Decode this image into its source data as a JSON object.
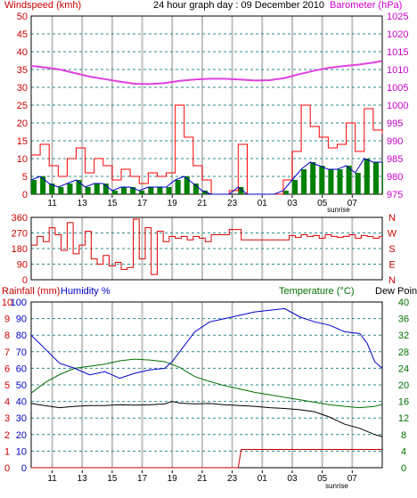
{
  "header": {
    "title": "24 hour graph day : 09 December 2010",
    "wind_label": "Windspeed (kmh)",
    "baro_label": "Barometer (hPa)"
  },
  "sunrise_label": "sunrise",
  "hour_ticks": [
    "11",
    "13",
    "15",
    "17",
    "19",
    "21",
    "23",
    "01",
    "03",
    "05",
    "07"
  ],
  "colors": {
    "background": "#ffffff",
    "grid_major": "#c0c0c0",
    "grid_dashed": "#2f8a8a",
    "wind_avg": "#0000cc",
    "wind_gust": "#ff0000",
    "wind_fill": "#008000",
    "barometer": "#e040e0",
    "direction": "#dd0000",
    "humidity": "#0000cc",
    "temperature": "#007000",
    "dewpoint": "#000000",
    "rainfall": "#cc0000",
    "left_axis_text": "#cc0000",
    "right_axis_text": "#cc00cc",
    "humidity_axis_text": "#0000cc",
    "temp_axis_text": "#007000"
  },
  "chart_data": [
    {
      "type": "line",
      "panel": "wind_barometer",
      "ylabel": "Windspeed (kmh)",
      "y2label": "Barometer (hPa)",
      "y_ticks": [
        "0",
        "5",
        "10",
        "15",
        "20",
        "25",
        "30",
        "35",
        "40",
        "45",
        "50"
      ],
      "y2_ticks": [
        "975",
        "980",
        "985",
        "990",
        "995",
        "1000",
        "1005",
        "1010",
        "1015",
        "1020",
        "1025"
      ],
      "ylim": [
        0,
        50
      ],
      "y2lim": [
        975,
        1025
      ],
      "x_hours_range": [
        9.6,
        33.0
      ],
      "series": [
        {
          "role": "barometer",
          "x": [
            9.6,
            10.5,
            11.5,
            12.5,
            13.5,
            14.5,
            15.5,
            16.5,
            17.5,
            18.5,
            19.5,
            20.5,
            21.5,
            22.5,
            23.5,
            24.5,
            25.5,
            26.5,
            27.5,
            28.5,
            29.5,
            30.5,
            31.5,
            32.5,
            33.0
          ],
          "values": [
            1011,
            1010.6,
            1010,
            1009,
            1008,
            1007.3,
            1006.6,
            1006,
            1005.9,
            1006.2,
            1006.8,
            1007.2,
            1007.4,
            1007.4,
            1007.2,
            1006.9,
            1007,
            1007.6,
            1008.7,
            1009.7,
            1010.5,
            1011,
            1011.4,
            1012,
            1012.4
          ]
        },
        {
          "role": "gust",
          "x": [
            9.6,
            10.2,
            10.8,
            11.4,
            12.0,
            12.6,
            13.2,
            13.8,
            14.4,
            15.0,
            15.6,
            16.2,
            16.8,
            17.4,
            18.0,
            18.6,
            19.2,
            19.8,
            20.4,
            21.0,
            21.6,
            22.2,
            22.8,
            23.4,
            24.0,
            24.6,
            25.2,
            25.8,
            26.4,
            27.0,
            27.6,
            28.2,
            28.8,
            29.4,
            30.0,
            30.6,
            31.2,
            31.8,
            32.4,
            33.0
          ],
          "values": [
            11,
            14,
            8,
            5,
            10,
            13,
            6,
            10,
            8,
            4,
            7,
            5,
            3,
            6,
            5,
            6,
            25,
            16,
            8,
            4,
            0,
            0,
            1,
            14,
            0,
            0,
            0,
            0,
            4,
            12,
            25,
            19,
            16,
            13,
            14,
            20,
            12,
            24,
            18,
            17
          ]
        },
        {
          "role": "average",
          "x": [
            9.6,
            10.2,
            10.8,
            11.4,
            12.0,
            12.6,
            13.2,
            13.8,
            14.4,
            15.0,
            15.6,
            16.2,
            16.8,
            17.4,
            18.0,
            18.6,
            19.2,
            19.8,
            20.4,
            21.0,
            21.6,
            22.2,
            22.8,
            23.4,
            24.0,
            24.6,
            25.2,
            25.8,
            26.4,
            27.0,
            27.6,
            28.2,
            28.8,
            29.4,
            30.0,
            30.6,
            31.2,
            31.8,
            32.4,
            33.0
          ],
          "values": [
            4,
            5,
            3,
            2,
            3,
            4,
            2,
            3,
            3,
            1,
            2,
            2,
            1,
            2,
            2,
            2,
            4,
            5,
            3,
            1,
            0,
            0,
            0,
            2,
            0,
            0,
            0,
            0,
            1,
            4,
            7,
            9,
            8,
            7,
            7,
            8,
            6,
            10,
            9,
            9
          ]
        }
      ]
    },
    {
      "type": "line",
      "panel": "wind_direction",
      "y_ticks": [
        "0",
        "90",
        "180",
        "270",
        "360"
      ],
      "y2_ticks": [
        "N",
        "W",
        "S",
        "E",
        "N"
      ],
      "ylim": [
        0,
        360
      ],
      "series": [
        {
          "role": "direction",
          "x": [
            9.6,
            10.0,
            10.4,
            10.8,
            11.2,
            11.6,
            12.0,
            12.4,
            12.8,
            13.2,
            13.6,
            14.0,
            14.4,
            14.8,
            15.2,
            15.6,
            16.0,
            16.4,
            16.8,
            17.2,
            17.6,
            18.0,
            18.4,
            18.8,
            19.2,
            19.6,
            20.0,
            20.4,
            20.8,
            21.2,
            21.6,
            22.0,
            22.4,
            22.8,
            23.2,
            23.6,
            24.0,
            24.4,
            24.8,
            25.2,
            25.6,
            26.0,
            26.4,
            26.8,
            27.2,
            27.6,
            28.0,
            28.4,
            28.8,
            29.2,
            29.6,
            30.0,
            30.4,
            30.8,
            31.2,
            31.6,
            32.0,
            32.4,
            32.8,
            33.0
          ],
          "values": [
            200,
            250,
            220,
            300,
            260,
            170,
            330,
            150,
            200,
            280,
            120,
            90,
            140,
            80,
            100,
            60,
            70,
            350,
            120,
            300,
            30,
            280,
            220,
            250,
            240,
            250,
            230,
            250,
            240,
            220,
            260,
            260,
            260,
            290,
            290,
            230,
            230,
            230,
            230,
            230,
            230,
            230,
            230,
            255,
            245,
            260,
            250,
            255,
            240,
            260,
            250,
            245,
            250,
            260,
            240,
            255,
            250,
            240,
            250,
            245
          ]
        }
      ]
    },
    {
      "type": "line",
      "panel": "humidity_temperature_rain",
      "ylabel": "Rainfall (mm)",
      "ylabel2": "Humidity %",
      "y2label": "Temperature (°C)",
      "y2label2": "Dew Point",
      "rain_ticks": [
        "0",
        "1",
        "2",
        "3",
        "4",
        "5",
        "6",
        "7",
        "8",
        "9",
        "10"
      ],
      "humidity_ticks": [
        "0",
        "10",
        "20",
        "30",
        "40",
        "50",
        "60",
        "70",
        "80",
        "90",
        "100"
      ],
      "temp_ticks": [
        "0",
        "4",
        "8",
        "12",
        "16",
        "20",
        "24",
        "28",
        "32",
        "36",
        "40"
      ],
      "ylim": [
        0,
        100
      ],
      "y2lim": [
        0,
        40
      ],
      "series": [
        {
          "role": "humidity",
          "x": [
            9.6,
            10.5,
            11.5,
            12.5,
            13.5,
            14.5,
            15.5,
            16.5,
            17.5,
            18.5,
            19.0,
            19.5,
            20.5,
            21.5,
            22.5,
            23.5,
            24.5,
            25.5,
            26.5,
            27.5,
            28.5,
            29.5,
            30.5,
            31.5,
            32.0,
            32.5,
            33.0
          ],
          "values": [
            80,
            72,
            63,
            60,
            56,
            58,
            54,
            57,
            59,
            60,
            64,
            70,
            82,
            88,
            90,
            92,
            94,
            95,
            96,
            91,
            88,
            86,
            82,
            81,
            75,
            64,
            60
          ]
        },
        {
          "role": "temperature",
          "x": [
            9.6,
            10.5,
            11.5,
            12.5,
            13.5,
            14.5,
            15.5,
            16.5,
            17.5,
            18.5,
            19.5,
            20.5,
            21.5,
            22.5,
            23.5,
            24.5,
            25.5,
            26.5,
            27.5,
            28.5,
            29.5,
            30.5,
            31.5,
            32.5,
            33.0
          ],
          "values": [
            18,
            20.5,
            22.5,
            24,
            24.5,
            25,
            25.8,
            26.2,
            26,
            25.6,
            24.2,
            22,
            20.8,
            19.8,
            19,
            18.2,
            17.6,
            17,
            16.4,
            15.8,
            15.2,
            14.8,
            14.5,
            14.8,
            15.3
          ]
        },
        {
          "role": "dewpoint",
          "x": [
            9.6,
            10.5,
            11.5,
            12.5,
            13.5,
            14.5,
            15.5,
            16.5,
            17.5,
            18.5,
            19.0,
            19.5,
            20.5,
            21.5,
            22.5,
            23.5,
            24.5,
            25.5,
            26.5,
            27.5,
            28.5,
            29.5,
            30.5,
            31.5,
            32.5,
            33.0
          ],
          "values": [
            15.5,
            15,
            14.5,
            14.8,
            15,
            15,
            15.2,
            15.1,
            15.2,
            15.4,
            16,
            15.6,
            15.4,
            15.5,
            15.2,
            15,
            14.8,
            14.5,
            14.3,
            14,
            13.5,
            12.2,
            10.5,
            9.5,
            8,
            7.5
          ]
        },
        {
          "role": "rainfall",
          "x": [
            9.6,
            23.0,
            23.4,
            23.6,
            33.0
          ],
          "values": [
            0,
            0,
            0,
            1.1,
            1.1
          ]
        }
      ]
    }
  ]
}
